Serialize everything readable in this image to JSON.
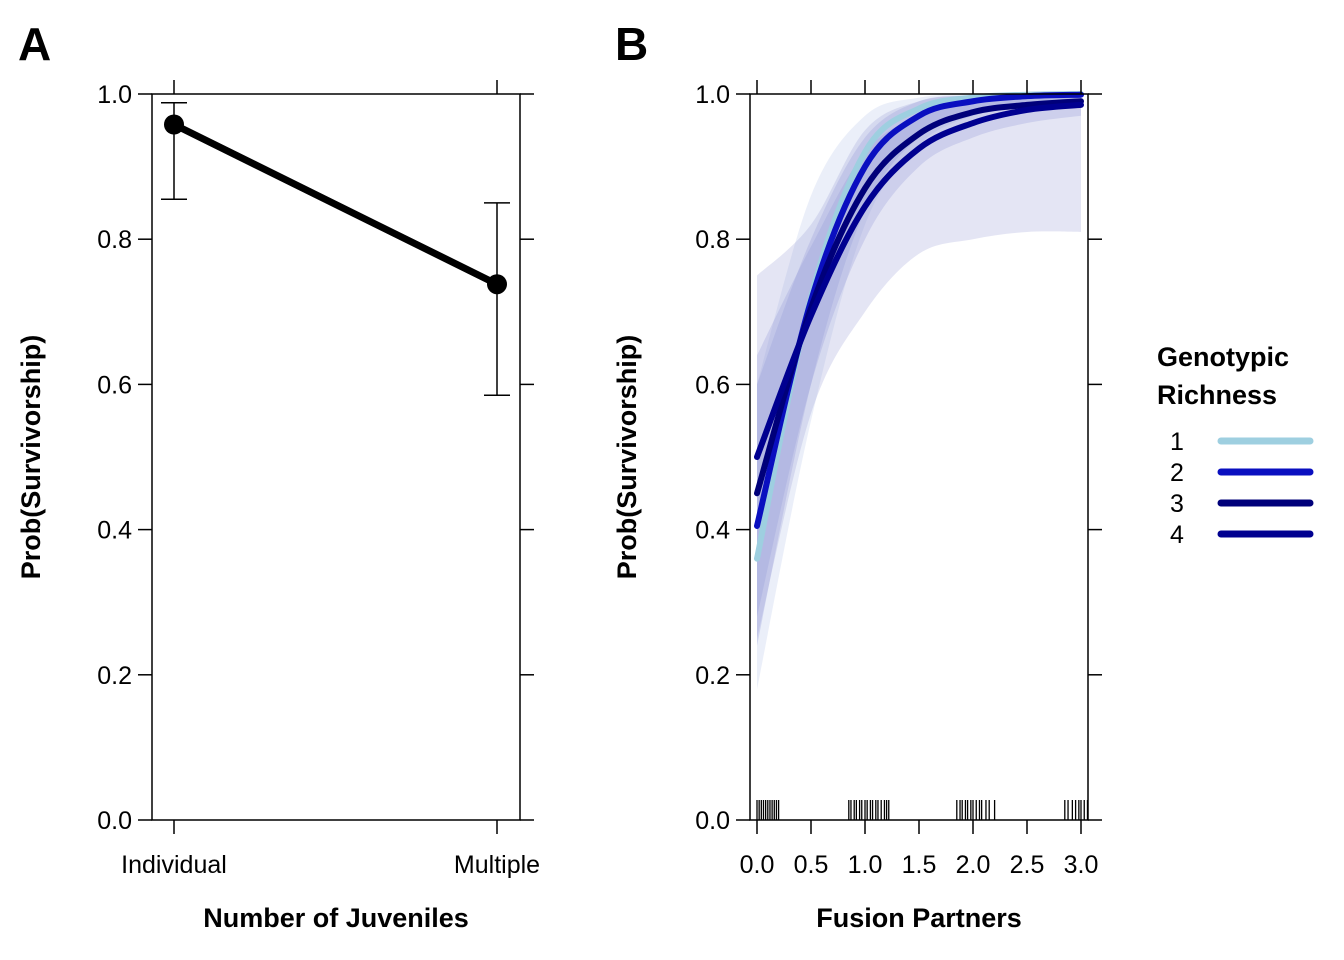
{
  "chart_data": [
    {
      "panel": "A",
      "type": "line",
      "title": "",
      "xlabel": "Number of Juveniles",
      "ylabel": "Prob(Survivorship)",
      "categories": [
        "Individual",
        "Multiple"
      ],
      "values": [
        0.958,
        0.738
      ],
      "error_bars": [
        {
          "lower": 0.855,
          "upper": 0.988
        },
        {
          "lower": 0.585,
          "upper": 0.85
        }
      ],
      "ylim": [
        0,
        1
      ],
      "yticks": [
        "0.0",
        "0.2",
        "0.4",
        "0.6",
        "0.8",
        "1.0"
      ],
      "grid": false
    },
    {
      "panel": "B",
      "type": "line",
      "title": "",
      "xlabel": "Fusion Partners",
      "ylabel": "Prob(Survivorship)",
      "xlim": [
        0,
        3
      ],
      "ylim": [
        0,
        1
      ],
      "xticks": [
        "0.0",
        "0.5",
        "1.0",
        "1.5",
        "2.0",
        "2.5",
        "3.0"
      ],
      "yticks": [
        "0.0",
        "0.2",
        "0.4",
        "0.6",
        "0.8",
        "1.0"
      ],
      "grid": false,
      "legend": {
        "title_lines": [
          "Genotypic",
          "Richness"
        ],
        "placement": "right"
      },
      "series": [
        {
          "name": "1",
          "color": "#9ecfe0",
          "x": [
            0,
            0.5,
            1,
            1.5,
            2,
            2.5,
            3
          ],
          "y": [
            0.36,
            0.72,
            0.92,
            0.98,
            0.995,
            0.999,
            1.0
          ],
          "ci_lower": [
            0.18,
            0.55,
            0.82,
            0.93,
            0.97,
            0.985,
            0.99
          ],
          "ci_upper": [
            0.6,
            0.86,
            0.97,
            0.995,
            0.999,
            1.0,
            1.0
          ]
        },
        {
          "name": "2",
          "color": "#0a0fc0",
          "x": [
            0,
            0.5,
            1,
            1.5,
            2,
            2.5,
            3
          ],
          "y": [
            0.405,
            0.715,
            0.9,
            0.97,
            0.99,
            0.997,
            0.999
          ],
          "ci_lower": [
            0.24,
            0.6,
            0.84,
            0.94,
            0.97,
            0.985,
            0.99
          ],
          "ci_upper": [
            0.6,
            0.8,
            0.94,
            0.99,
            0.998,
            1.0,
            1.0
          ]
        },
        {
          "name": "3",
          "color": "#00007a",
          "x": [
            0,
            0.5,
            1,
            1.5,
            2,
            2.5,
            3
          ],
          "y": [
            0.45,
            0.705,
            0.87,
            0.945,
            0.975,
            0.985,
            0.99
          ],
          "ci_lower": [
            0.28,
            0.6,
            0.8,
            0.9,
            0.94,
            0.96,
            0.97
          ],
          "ci_upper": [
            0.64,
            0.79,
            0.92,
            0.97,
            0.99,
            0.995,
            0.998
          ]
        },
        {
          "name": "4",
          "color": "#000090",
          "x": [
            0,
            0.5,
            1,
            1.5,
            2,
            2.5,
            3
          ],
          "y": [
            0.5,
            0.695,
            0.845,
            0.925,
            0.96,
            0.978,
            0.985
          ],
          "ci_lower": [
            0.25,
            0.56,
            0.7,
            0.78,
            0.8,
            0.81,
            0.81
          ],
          "ci_upper": [
            0.75,
            0.82,
            0.95,
            0.99,
            0.998,
            1.0,
            1.0
          ]
        }
      ],
      "rug_x": [
        0,
        0.02,
        0.04,
        0.06,
        0.08,
        0.1,
        0.12,
        0.14,
        0.16,
        0.18,
        0.2,
        0.85,
        0.87,
        0.9,
        0.92,
        0.95,
        0.97,
        1.0,
        1.02,
        1.05,
        1.07,
        1.1,
        1.12,
        1.15,
        1.18,
        1.2,
        1.22,
        1.85,
        1.88,
        1.9,
        1.93,
        1.95,
        1.98,
        2.0,
        2.03,
        2.06,
        2.08,
        2.12,
        2.15,
        2.2,
        2.85,
        2.88,
        2.92,
        2.95,
        2.98,
        3.0,
        3.03,
        3.06
      ]
    }
  ]
}
